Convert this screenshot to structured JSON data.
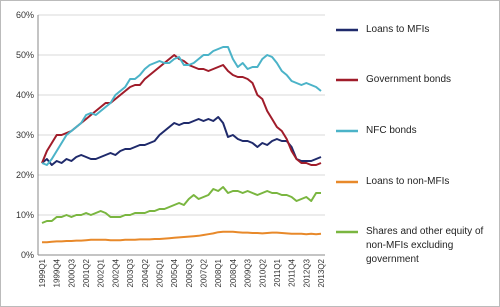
{
  "chart_data": {
    "type": "line",
    "categories": [
      "1999Q1",
      null,
      null,
      "1999Q4",
      null,
      null,
      "2000Q3",
      null,
      null,
      "2001Q2",
      null,
      null,
      "2002Q1",
      null,
      null,
      "2002Q4",
      null,
      null,
      "2003Q3",
      null,
      null,
      "2004Q2",
      null,
      null,
      "2005Q1",
      null,
      null,
      "2005Q4",
      null,
      null,
      "2006Q3",
      null,
      null,
      "2007Q2",
      null,
      null,
      "2008Q1",
      null,
      null,
      "2008Q4",
      null,
      null,
      "2009Q3",
      null,
      null,
      "2010Q2",
      null,
      null,
      "2011Q1",
      null,
      null,
      "2011Q4",
      null,
      null,
      "2012Q3",
      null,
      null,
      "2013Q2"
    ],
    "series": [
      {
        "name": "Loans to MFIs",
        "color": "#1f2a6b",
        "values": [
          23,
          24,
          22.5,
          23.5,
          23,
          24,
          23.5,
          24.5,
          25,
          24.5,
          24,
          24,
          24.5,
          25,
          25.5,
          25,
          26,
          26.5,
          26.5,
          27,
          27.5,
          27.5,
          28,
          28.5,
          30,
          31,
          32,
          33,
          32.5,
          33,
          33,
          33.5,
          34,
          33.5,
          34,
          33.5,
          34.5,
          33,
          29.5,
          30,
          29,
          28.5,
          28.5,
          28,
          27,
          28,
          27.5,
          28.5,
          29,
          28.5,
          28.5,
          27,
          24,
          23.5,
          23.5,
          23.5,
          24,
          24.5
        ]
      },
      {
        "name": "Government bonds",
        "color": "#a01c2a",
        "values": [
          23,
          26,
          28,
          30,
          30,
          30.5,
          31,
          32,
          33,
          34,
          35,
          36,
          37,
          38,
          38,
          39,
          40,
          41,
          42,
          42.5,
          42.5,
          44,
          45,
          46,
          47,
          48,
          49,
          50,
          49,
          48.5,
          47.5,
          47,
          46.5,
          46.5,
          46,
          46.5,
          47,
          47.5,
          46,
          45,
          44.5,
          44.5,
          44,
          43,
          40,
          39,
          36,
          34,
          32,
          31,
          29,
          26,
          24,
          23,
          23,
          22.5,
          22.5,
          23
        ]
      },
      {
        "name": "NFC bonds",
        "color": "#4bb3c8",
        "values": [
          23,
          22.5,
          24,
          26,
          28,
          30,
          31,
          32,
          33,
          35,
          35.5,
          35,
          36,
          37,
          38,
          40,
          41,
          42,
          44,
          44,
          45,
          46.5,
          47.5,
          48,
          48.5,
          48,
          48,
          49,
          49.5,
          47.5,
          47.5,
          48,
          49,
          50,
          50,
          51,
          51.5,
          52,
          52,
          49,
          47,
          48,
          46.5,
          47,
          47,
          49,
          50,
          49.5,
          48,
          46,
          45,
          43.5,
          43,
          42.5,
          43,
          42.5,
          42,
          41
        ]
      },
      {
        "name": "Loans to non-MFIs",
        "color": "#e8892a",
        "values": [
          3.2,
          3.2,
          3.3,
          3.4,
          3.4,
          3.5,
          3.5,
          3.6,
          3.6,
          3.7,
          3.8,
          3.8,
          3.8,
          3.8,
          3.7,
          3.7,
          3.7,
          3.8,
          3.8,
          3.8,
          3.9,
          3.9,
          3.9,
          4.0,
          4.0,
          4.1,
          4.2,
          4.3,
          4.4,
          4.5,
          4.6,
          4.7,
          4.8,
          5.0,
          5.2,
          5.4,
          5.7,
          5.8,
          5.8,
          5.8,
          5.7,
          5.6,
          5.6,
          5.5,
          5.5,
          5.4,
          5.5,
          5.6,
          5.6,
          5.5,
          5.4,
          5.3,
          5.3,
          5.3,
          5.2,
          5.3,
          5.2,
          5.3
        ]
      },
      {
        "name": "Shares and other equity of non-MFIs excluding government",
        "color": "#7ab640",
        "values": [
          8,
          8.5,
          8.5,
          9.5,
          9.5,
          10,
          9.5,
          10,
          10,
          10.5,
          10,
          10.5,
          11,
          10.5,
          9.5,
          9.5,
          9.5,
          10,
          10,
          10.5,
          10.5,
          10.5,
          11,
          11,
          11.5,
          11.5,
          12,
          12.5,
          13,
          12.5,
          14,
          15,
          14,
          14.5,
          15,
          16.5,
          16,
          17,
          15.5,
          16,
          16,
          15.5,
          16,
          15.5,
          15,
          15.5,
          16,
          15.5,
          15.5,
          15,
          15,
          14.5,
          13.5,
          14,
          14.5,
          13.5,
          15.5,
          15.5
        ]
      }
    ],
    "ylim": [
      0,
      60
    ],
    "yticks": [
      {
        "value": 0,
        "label": "0%"
      },
      {
        "value": 10,
        "label": "10%"
      },
      {
        "value": 20,
        "label": "20%"
      },
      {
        "value": 30,
        "label": "30%"
      },
      {
        "value": 40,
        "label": "40%"
      },
      {
        "value": 50,
        "label": "50%"
      },
      {
        "value": 60,
        "label": "60%"
      }
    ],
    "grid": true
  }
}
